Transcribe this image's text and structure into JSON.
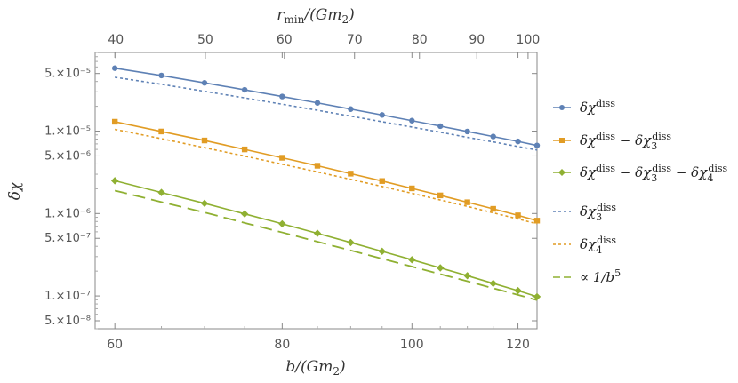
{
  "chart_data": {
    "type": "line",
    "xscale": "log",
    "yscale": "log",
    "xlim": [
      58,
      124
    ],
    "ylim": [
      4e-08,
      9e-05
    ],
    "xlabel": "b/(Gm₂)",
    "ylabel": "δχ",
    "top_axis_label": "r_min/(Gm₂)",
    "x_ticks": [
      {
        "value": 60,
        "label": "60"
      },
      {
        "value": 80,
        "label": "80"
      },
      {
        "value": 100,
        "label": "100"
      },
      {
        "value": 120,
        "label": "120"
      }
    ],
    "top_ticks": [
      {
        "value": 60.1,
        "label": "40"
      },
      {
        "value": 70.1,
        "label": "50"
      },
      {
        "value": 80.3,
        "label": "60"
      },
      {
        "value": 90.6,
        "label": "70"
      },
      {
        "value": 101.3,
        "label": "80"
      },
      {
        "value": 111.8,
        "label": "90"
      },
      {
        "value": 122.1,
        "label": "100"
      }
    ],
    "y_ticks": [
      {
        "value": 5e-05,
        "label": "5.×10⁻⁵"
      },
      {
        "value": 1e-05,
        "label": "1.×10⁻⁵"
      },
      {
        "value": 5e-06,
        "label": "5.×10⁻⁶"
      },
      {
        "value": 1e-06,
        "label": "1.×10⁻⁶"
      },
      {
        "value": 5e-07,
        "label": "5.×10⁻⁷"
      },
      {
        "value": 1e-07,
        "label": "1.×10⁻⁷"
      },
      {
        "value": 5e-08,
        "label": "5.×10⁻⁸"
      }
    ],
    "x": [
      60,
      65,
      70,
      75,
      80,
      85,
      90,
      95,
      100,
      105,
      110,
      115,
      120,
      124
    ],
    "series": [
      {
        "name": "δχ^diss",
        "style": "solid",
        "marker": "circle",
        "color": "#5e81b5",
        "values": [
          5.8e-05,
          4.73e-05,
          3.85e-05,
          3.17e-05,
          2.63e-05,
          2.2e-05,
          1.85e-05,
          1.57e-05,
          1.34e-05,
          1.15e-05,
          9.9e-06,
          8.6e-06,
          7.5e-06,
          6.7e-06
        ]
      },
      {
        "name": "δχ^diss − δχ₃^diss",
        "style": "solid",
        "marker": "square",
        "color": "#e19c24",
        "values": [
          1.3e-05,
          9.9e-06,
          7.7e-06,
          6e-06,
          4.75e-06,
          3.8e-06,
          3.05e-06,
          2.48e-06,
          2.02e-06,
          1.66e-06,
          1.37e-06,
          1.14e-06,
          9.5e-07,
          8.2e-07
        ]
      },
      {
        "name": "δχ^diss − δχ₃^diss − δχ₄^diss",
        "style": "solid",
        "marker": "diamond",
        "color": "#8fb032",
        "values": [
          2.5e-06,
          1.8e-06,
          1.33e-06,
          9.9e-07,
          7.5e-07,
          5.75e-07,
          4.45e-07,
          3.48e-07,
          2.75e-07,
          2.19e-07,
          1.76e-07,
          1.42e-07,
          1.16e-07,
          9.8e-08
        ]
      },
      {
        "name": "δχ₃^diss",
        "style": "dotted",
        "marker": "none",
        "color": "#5e81b5",
        "values": [
          4.5e-05,
          3.7e-05,
          3.04e-05,
          2.53e-05,
          2.12e-05,
          1.79e-05,
          1.52e-05,
          1.3e-05,
          1.12e-05,
          9.7e-06,
          8.4e-06,
          7.4e-06,
          6.5e-06,
          5.9e-06
        ]
      },
      {
        "name": "δχ₄^diss",
        "style": "dotted",
        "marker": "none",
        "color": "#e19c24",
        "values": [
          1.05e-05,
          8.1e-06,
          6.3e-06,
          4.98e-06,
          3.97e-06,
          3.2e-06,
          2.6e-06,
          2.13e-06,
          1.76e-06,
          1.46e-06,
          1.22e-06,
          1.02e-06,
          8.6e-07,
          7.5e-07
        ]
      },
      {
        "name": "∝ 1/b⁵",
        "style": "dashed",
        "marker": "none",
        "color": "#8fb032",
        "values": [
          1.9e-06,
          1.38e-06,
          1.03e-06,
          7.7e-07,
          5.9e-07,
          4.55e-07,
          3.57e-07,
          2.83e-07,
          2.27e-07,
          1.84e-07,
          1.51e-07,
          1.24e-07,
          1.03e-07,
          8.9e-08
        ]
      }
    ],
    "legend_position": "right"
  }
}
